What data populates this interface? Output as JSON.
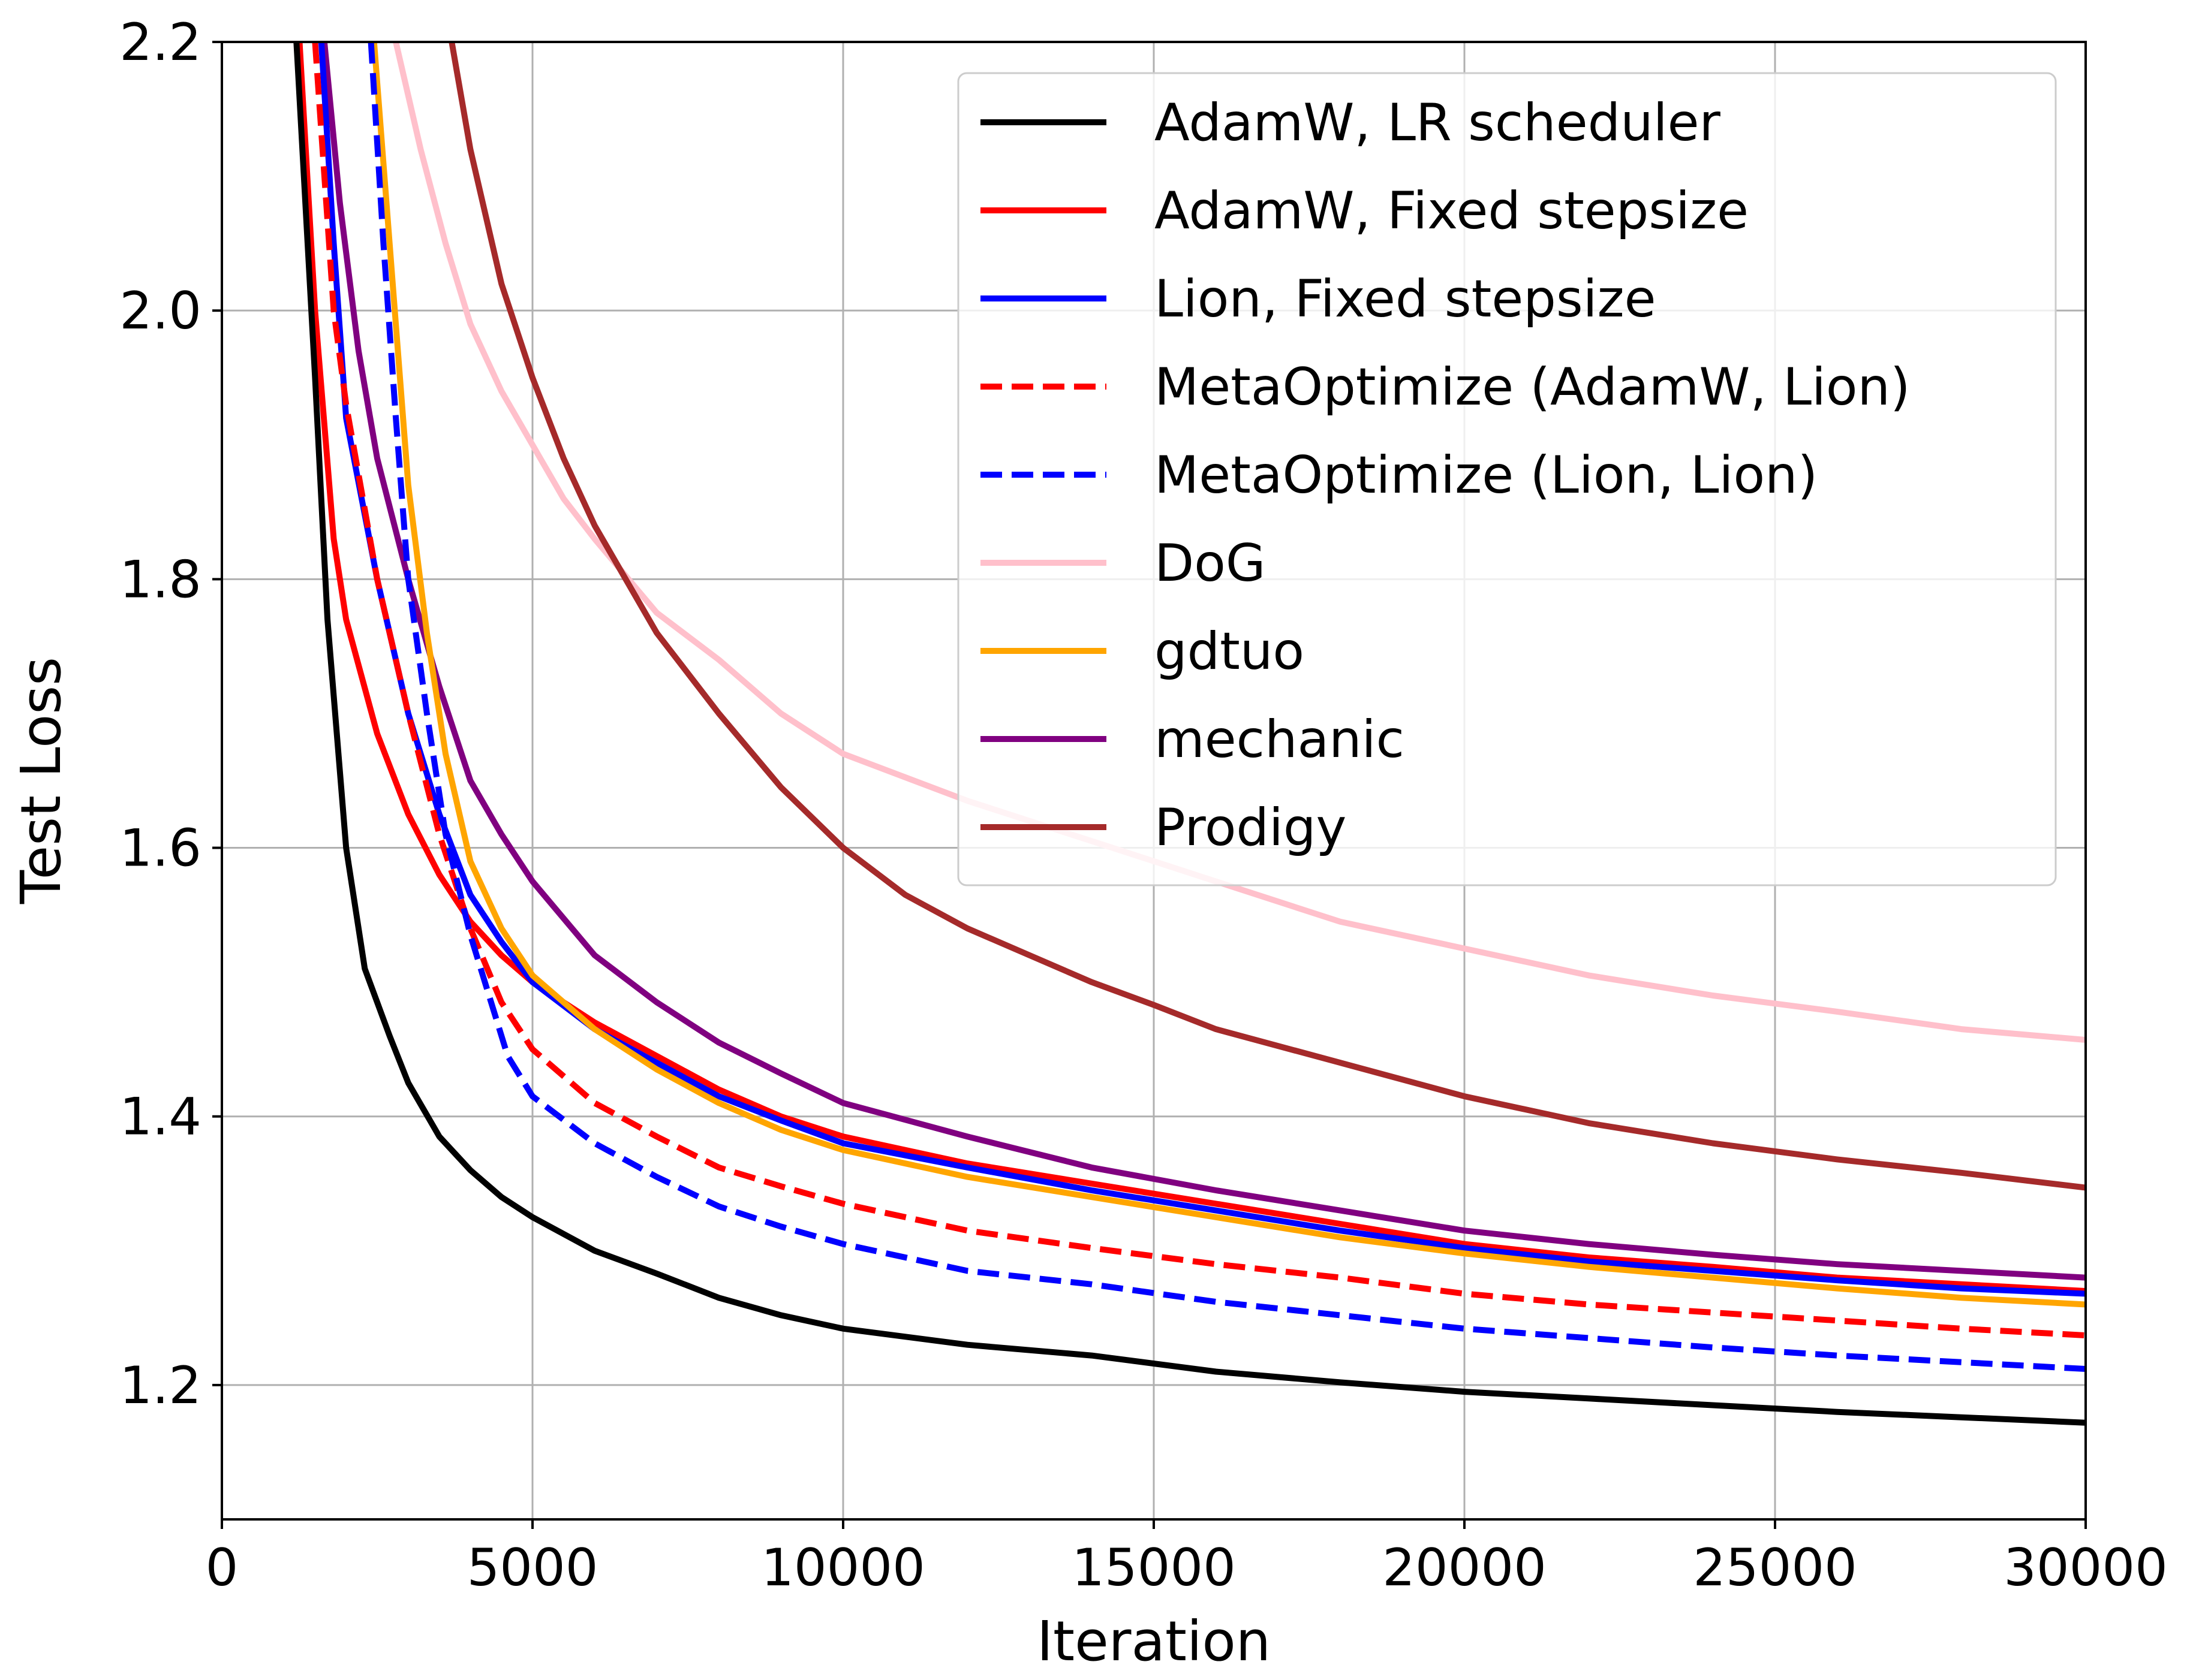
{
  "chart_data": {
    "type": "line",
    "title": "",
    "xlabel": "Iteration",
    "ylabel": "Test Loss",
    "xlim": [
      0,
      30000
    ],
    "ylim": [
      1.1,
      2.2
    ],
    "xticks": [
      0,
      5000,
      10000,
      15000,
      20000,
      25000,
      30000
    ],
    "xtick_labels": [
      "0",
      "5000",
      "10000",
      "15000",
      "20000",
      "25000",
      "30000"
    ],
    "yticks": [
      1.2,
      1.4,
      1.6,
      1.8,
      2.0,
      2.2
    ],
    "ytick_labels": [
      "1.2",
      "1.4",
      "1.6",
      "1.8",
      "2.0",
      "2.2"
    ],
    "grid": true,
    "legend_position": "top-right",
    "series": [
      {
        "name": "AdamW, LR scheduler",
        "color": "#000000",
        "dash": "solid",
        "x": [
          1200,
          1500,
          1700,
          2000,
          2300,
          2700,
          3000,
          3500,
          4000,
          4500,
          5000,
          6000,
          7000,
          8000,
          9000,
          10000,
          12000,
          14000,
          16000,
          18000,
          20000,
          22000,
          24000,
          26000,
          28000,
          30000
        ],
        "y": [
          2.2,
          1.95,
          1.77,
          1.6,
          1.51,
          1.46,
          1.425,
          1.385,
          1.36,
          1.34,
          1.325,
          1.3,
          1.283,
          1.265,
          1.252,
          1.242,
          1.23,
          1.222,
          1.21,
          1.202,
          1.195,
          1.19,
          1.185,
          1.18,
          1.176,
          1.172
        ]
      },
      {
        "name": "AdamW, Fixed stepsize",
        "color": "#ff0000",
        "dash": "solid",
        "x": [
          1250,
          1500,
          1800,
          2000,
          2500,
          3000,
          3500,
          4000,
          4500,
          5000,
          6000,
          7000,
          8000,
          9000,
          10000,
          12000,
          14000,
          16000,
          18000,
          20000,
          22000,
          24000,
          26000,
          28000,
          30000
        ],
        "y": [
          2.2,
          2.0,
          1.83,
          1.77,
          1.685,
          1.625,
          1.58,
          1.545,
          1.52,
          1.5,
          1.47,
          1.445,
          1.42,
          1.4,
          1.385,
          1.365,
          1.35,
          1.335,
          1.32,
          1.305,
          1.295,
          1.288,
          1.28,
          1.275,
          1.27
        ]
      },
      {
        "name": "Lion, Fixed stepsize",
        "color": "#0000ff",
        "dash": "solid",
        "x": [
          1600,
          1800,
          2000,
          2500,
          3000,
          3500,
          4000,
          4500,
          5000,
          6000,
          7000,
          8000,
          9000,
          10000,
          12000,
          14000,
          16000,
          18000,
          20000,
          22000,
          24000,
          26000,
          28000,
          30000
        ],
        "y": [
          2.2,
          2.05,
          1.92,
          1.8,
          1.7,
          1.625,
          1.565,
          1.53,
          1.5,
          1.465,
          1.44,
          1.415,
          1.397,
          1.38,
          1.362,
          1.345,
          1.33,
          1.315,
          1.302,
          1.292,
          1.285,
          1.278,
          1.272,
          1.268
        ]
      },
      {
        "name": "MetaOptimize (AdamW, Lion)",
        "color": "#ff0000",
        "dash": "dashed",
        "x": [
          1500,
          1800,
          2000,
          2500,
          3000,
          3500,
          4000,
          4500,
          5000,
          6000,
          7000,
          8000,
          9000,
          10000,
          12000,
          14000,
          16000,
          18000,
          20000,
          22000,
          24000,
          26000,
          28000,
          30000
        ],
        "y": [
          2.2,
          2.0,
          1.93,
          1.8,
          1.7,
          1.61,
          1.54,
          1.485,
          1.45,
          1.41,
          1.385,
          1.362,
          1.348,
          1.335,
          1.315,
          1.302,
          1.29,
          1.28,
          1.268,
          1.26,
          1.254,
          1.248,
          1.242,
          1.237
        ]
      },
      {
        "name": "MetaOptimize (Lion, Lion)",
        "color": "#0000ff",
        "dash": "dashed",
        "x": [
          2400,
          2600,
          2800,
          3000,
          3300,
          3600,
          4000,
          4300,
          4600,
          5000,
          6000,
          7000,
          8000,
          9000,
          10000,
          12000,
          14000,
          16000,
          18000,
          20000,
          22000,
          24000,
          26000,
          28000,
          30000
        ],
        "y": [
          2.2,
          2.05,
          1.92,
          1.8,
          1.7,
          1.61,
          1.535,
          1.49,
          1.445,
          1.415,
          1.38,
          1.355,
          1.333,
          1.318,
          1.305,
          1.285,
          1.275,
          1.262,
          1.252,
          1.242,
          1.235,
          1.228,
          1.222,
          1.217,
          1.212
        ]
      },
      {
        "name": "DoG",
        "color": "#ffc0cb",
        "dash": "solid",
        "x": [
          2800,
          3200,
          3600,
          4000,
          4500,
          5000,
          5500,
          6000,
          7000,
          8000,
          9000,
          10000,
          12000,
          14000,
          16000,
          18000,
          20000,
          22000,
          24000,
          26000,
          28000,
          30000
        ],
        "y": [
          2.2,
          2.12,
          2.05,
          1.99,
          1.94,
          1.9,
          1.86,
          1.83,
          1.775,
          1.74,
          1.7,
          1.67,
          1.635,
          1.605,
          1.575,
          1.545,
          1.525,
          1.505,
          1.49,
          1.478,
          1.465,
          1.457
        ]
      },
      {
        "name": "gdtuo",
        "color": "#ffa500",
        "dash": "solid",
        "x": [
          2450,
          2700,
          3000,
          3300,
          3600,
          4000,
          4500,
          5000,
          6000,
          7000,
          8000,
          9000,
          10000,
          12000,
          14000,
          16000,
          18000,
          20000,
          22000,
          24000,
          26000,
          28000,
          30000
        ],
        "y": [
          2.2,
          2.05,
          1.87,
          1.76,
          1.67,
          1.59,
          1.54,
          1.505,
          1.465,
          1.435,
          1.41,
          1.39,
          1.375,
          1.355,
          1.34,
          1.325,
          1.31,
          1.298,
          1.288,
          1.28,
          1.272,
          1.265,
          1.26
        ]
      },
      {
        "name": "mechanic",
        "color": "#800080",
        "dash": "solid",
        "x": [
          1650,
          1900,
          2200,
          2500,
          3000,
          3500,
          4000,
          4500,
          5000,
          6000,
          7000,
          8000,
          9000,
          10000,
          12000,
          14000,
          16000,
          18000,
          20000,
          22000,
          24000,
          26000,
          28000,
          30000
        ],
        "y": [
          2.2,
          2.08,
          1.97,
          1.89,
          1.8,
          1.72,
          1.65,
          1.61,
          1.575,
          1.52,
          1.485,
          1.455,
          1.432,
          1.41,
          1.385,
          1.362,
          1.345,
          1.33,
          1.315,
          1.305,
          1.297,
          1.29,
          1.285,
          1.28
        ]
      },
      {
        "name": "Prodigy",
        "color": "#a52a2a",
        "dash": "solid",
        "x": [
          3700,
          4000,
          4500,
          5000,
          5500,
          6000,
          7000,
          8000,
          9000,
          10000,
          11000,
          12000,
          13000,
          14000,
          15000,
          16000,
          18000,
          20000,
          22000,
          24000,
          26000,
          28000,
          30000
        ],
        "y": [
          2.2,
          2.12,
          2.02,
          1.95,
          1.89,
          1.84,
          1.76,
          1.7,
          1.645,
          1.6,
          1.565,
          1.54,
          1.52,
          1.5,
          1.483,
          1.465,
          1.44,
          1.415,
          1.395,
          1.38,
          1.368,
          1.358,
          1.347
        ]
      }
    ]
  }
}
